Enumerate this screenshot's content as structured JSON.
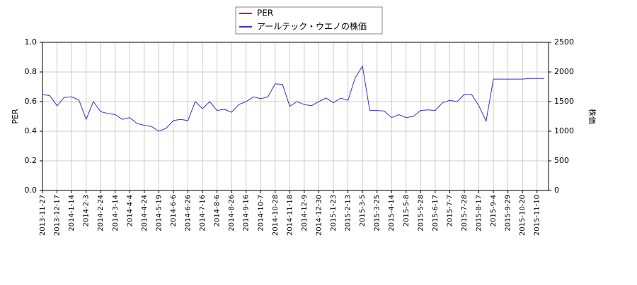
{
  "chart_data": {
    "type": "line",
    "categories": [
      "2013-11-27",
      null,
      "2013-12-17",
      null,
      "2014-1-14",
      null,
      "2014-2-3",
      null,
      "2014-2-24",
      null,
      "2014-3-14",
      null,
      "2014-4-4",
      null,
      "2014-4-24",
      null,
      "2014-5-19",
      null,
      "2014-6-6",
      null,
      "2014-6-26",
      null,
      "2014-7-16",
      null,
      "2014-8-6",
      null,
      "2014-8-26",
      null,
      "2014-9-16",
      null,
      "2014-10-7",
      null,
      "2014-10-28",
      null,
      "2014-11-18",
      null,
      "2014-12-9",
      null,
      "2014-12-30",
      null,
      "2015-1-23",
      null,
      "2015-2-13",
      null,
      "2015-3-5",
      null,
      "2015-3-25",
      null,
      "2015-4-14",
      null,
      "2015-5-8",
      null,
      "2015-5-28",
      null,
      "2015-6-17",
      null,
      "2015-7-7",
      null,
      "2015-7-28",
      null,
      "2015-8-17",
      null,
      "2015-9-4",
      null,
      "2015-9-29",
      null,
      "2015-10-20",
      null,
      "2015-11-10",
      null
    ],
    "series": [
      {
        "name": "PER",
        "color": "#dd0000",
        "axis": "y",
        "values": [
          null,
          null,
          null,
          null,
          null,
          null,
          null,
          null,
          null,
          null,
          null,
          null,
          null,
          null,
          null,
          null,
          null,
          null,
          null,
          null,
          null,
          null,
          null,
          null,
          null,
          null,
          null,
          null,
          null,
          null,
          null,
          null,
          null,
          null,
          null,
          null,
          null,
          null,
          null,
          null,
          null,
          null,
          null,
          null,
          null,
          null,
          null,
          null,
          null,
          null,
          null,
          null,
          null,
          null,
          null,
          null,
          null,
          null,
          null,
          null,
          null,
          null,
          null,
          null,
          null,
          null,
          null,
          null,
          null,
          null
        ]
      },
      {
        "name": "アールテック・ウエノの株価",
        "color": "#3333cc",
        "axis": "y2",
        "values": [
          1620,
          1600,
          1430,
          1570,
          1580,
          1530,
          1200,
          1500,
          1330,
          1300,
          1280,
          1200,
          1230,
          1130,
          1100,
          1080,
          1000,
          1050,
          1180,
          1200,
          1180,
          1500,
          1380,
          1500,
          1350,
          1370,
          1320,
          1450,
          1500,
          1580,
          1550,
          1580,
          1800,
          1790,
          1420,
          1500,
          1450,
          1430,
          1500,
          1560,
          1480,
          1560,
          1520,
          1900,
          2100,
          1350,
          1350,
          1340,
          1230,
          1280,
          1230,
          1250,
          1350,
          1360,
          1350,
          1480,
          1520,
          1500,
          1620,
          1620,
          1430,
          1170,
          1880,
          1880,
          1880,
          1880,
          1880,
          1890,
          1890,
          1890
        ]
      }
    ],
    "ylabel": "PER",
    "y2label": "株価",
    "ylim": [
      0,
      1
    ],
    "yticks": [
      {
        "value": 0,
        "label": "0.0"
      },
      {
        "value": 0.2,
        "label": "0.2"
      },
      {
        "value": 0.4,
        "label": "0.4"
      },
      {
        "value": 0.6,
        "label": "0.6"
      },
      {
        "value": 0.8,
        "label": "0.8"
      },
      {
        "value": 1,
        "label": "1.0"
      }
    ],
    "y2lim": [
      0,
      2500
    ],
    "y2ticks": [
      0,
      500,
      1000,
      1500,
      2000,
      2500
    ],
    "grid": true
  }
}
